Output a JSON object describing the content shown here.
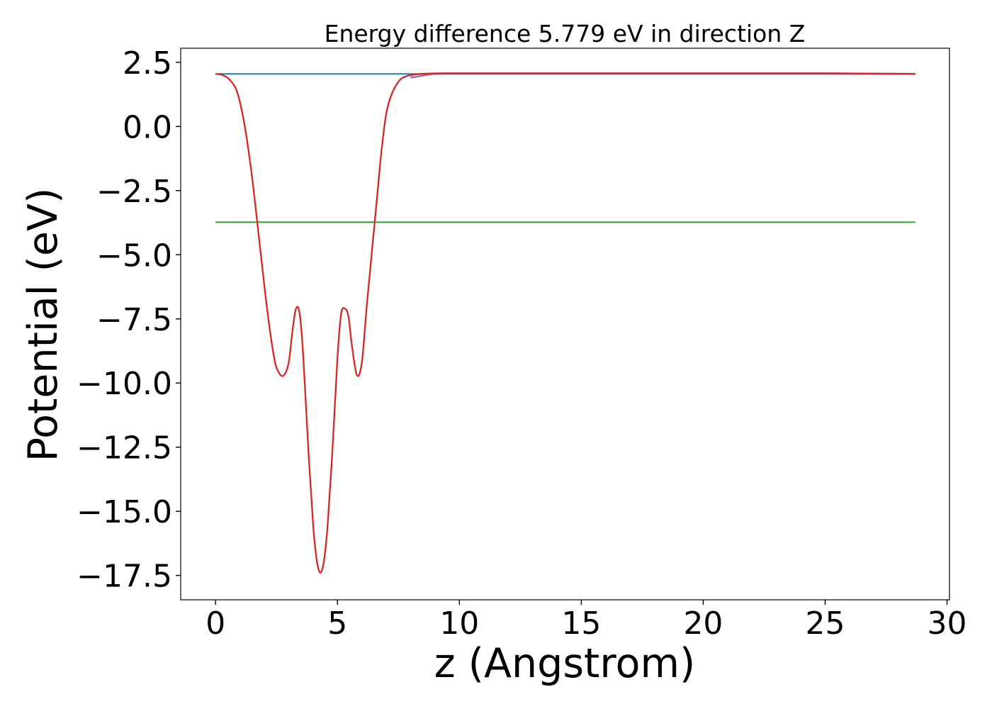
{
  "chart_data": {
    "type": "line",
    "title": "Energy difference 5.779 eV in direction Z",
    "xlabel": "z (Angstrom)",
    "ylabel": "Potential (eV)",
    "xlim": [
      -1.43,
      30.1
    ],
    "ylim": [
      -18.45,
      3.05
    ],
    "xticks": [
      0,
      5,
      10,
      15,
      20,
      25,
      30
    ],
    "xtick_labels": [
      "0",
      "5",
      "10",
      "15",
      "20",
      "25",
      "30"
    ],
    "yticks": [
      2.5,
      0.0,
      -2.5,
      -5.0,
      -7.5,
      -10.0,
      -12.5,
      -15.0,
      -17.5
    ],
    "ytick_labels": [
      "2.5",
      "0.0",
      "−2.5",
      "−5.0",
      "−7.5",
      "−10.0",
      "−12.5",
      "−15.0",
      "−17.5"
    ],
    "grid": false,
    "legend": "none",
    "series": [
      {
        "color": "#1f77b4",
        "style": "horizontal",
        "x": [
          0.0,
          28.7
        ],
        "y": [
          2.05,
          2.05
        ]
      },
      {
        "color": "#2ca02c",
        "style": "horizontal",
        "x": [
          0.0,
          28.7
        ],
        "y": [
          -3.73,
          -3.73
        ]
      },
      {
        "color": "#9467bd",
        "style": "line",
        "x": [
          8.0,
          9.0,
          10.0,
          15.0,
          20.0,
          25.0,
          28.7
        ],
        "y": [
          1.9,
          2.05,
          2.07,
          2.07,
          2.07,
          2.07,
          2.05
        ]
      },
      {
        "color": "#d62728",
        "style": "line",
        "x": [
          0.0,
          0.3,
          0.6,
          0.9,
          1.2,
          1.5,
          1.8,
          2.1,
          2.4,
          2.6,
          2.8,
          3.0,
          3.15,
          3.3,
          3.45,
          3.6,
          3.8,
          4.0,
          4.15,
          4.3,
          4.45,
          4.6,
          4.8,
          5.0,
          5.15,
          5.3,
          5.45,
          5.6,
          5.8,
          6.0,
          6.2,
          6.4,
          6.6,
          6.8,
          7.0,
          7.2,
          7.4,
          7.6,
          7.8,
          8.0,
          8.3,
          8.7,
          9.2,
          10.0,
          15.0,
          20.0,
          25.0,
          28.7
        ],
        "y": [
          2.05,
          2.0,
          1.8,
          1.3,
          0.0,
          -2.0,
          -4.5,
          -7.0,
          -9.0,
          -9.6,
          -9.7,
          -9.2,
          -8.0,
          -7.1,
          -7.3,
          -9.0,
          -12.5,
          -15.5,
          -16.9,
          -17.4,
          -16.9,
          -15.5,
          -12.5,
          -9.0,
          -7.3,
          -7.1,
          -7.4,
          -8.6,
          -9.7,
          -9.2,
          -7.0,
          -5.0,
          -3.0,
          -1.0,
          0.5,
          1.2,
          1.6,
          1.85,
          1.95,
          2.0,
          2.04,
          2.06,
          2.07,
          2.07,
          2.07,
          2.07,
          2.07,
          2.05
        ]
      }
    ]
  }
}
